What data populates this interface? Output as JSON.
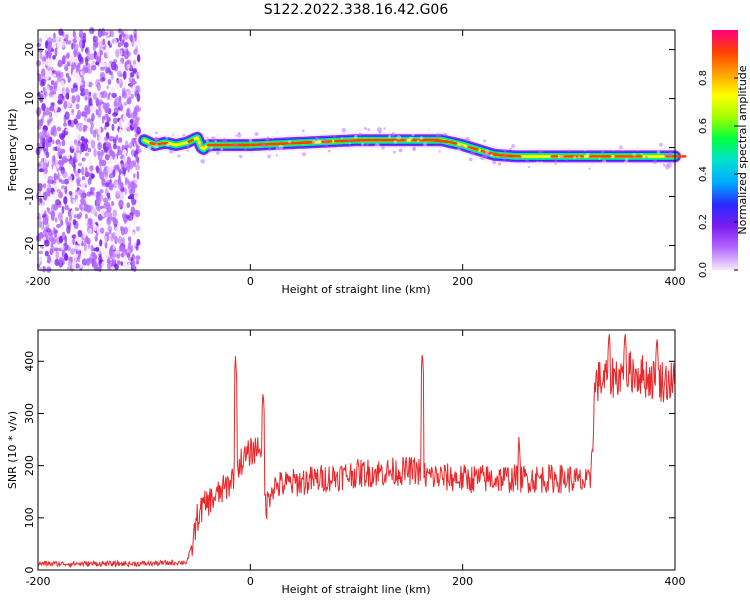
{
  "title": "S122.2022.338.16.42.G06",
  "colors": {
    "snr_line": "#e8282a",
    "colormap": [
      "#f6e8fb",
      "#b56bff",
      "#7a1cf0",
      "#2a2aff",
      "#00aaff",
      "#00e0d0",
      "#00ff40",
      "#a0ff00",
      "#ffff00",
      "#ffa000",
      "#ff4000",
      "#ff0080"
    ]
  },
  "chart_data": [
    {
      "type": "heatmap",
      "xlabel": "Height of straight line (km)",
      "ylabel": "Frequency (Hz)",
      "xlim": [
        -200,
        400
      ],
      "ylim": [
        -25,
        24
      ],
      "xticks": [
        -200,
        0,
        200,
        400
      ],
      "yticks": [
        -20,
        -10,
        0,
        10,
        20
      ],
      "noise_region_x": [
        -200,
        -100
      ],
      "signal_track": {
        "x": [
          -100,
          -90,
          -80,
          -70,
          -60,
          -50,
          -45,
          -40,
          -20,
          0,
          50,
          100,
          150,
          180,
          200,
          215,
          230,
          250,
          300,
          350,
          400
        ],
        "freq": [
          1.5,
          0.5,
          1.0,
          0.5,
          1.0,
          2.0,
          -0.5,
          0.5,
          0.5,
          0.5,
          1.0,
          1.5,
          1.5,
          1.5,
          0.5,
          -0.5,
          -1.5,
          -1.8,
          -1.8,
          -1.8,
          -1.8
        ]
      },
      "colorbar": {
        "label": "Normalized spectral amplitude",
        "ticks": [
          0.0,
          0.2,
          0.4,
          0.6,
          0.8
        ],
        "range": [
          0,
          1
        ]
      }
    },
    {
      "type": "line",
      "xlabel": "Height of straight line (km)",
      "ylabel": "SNR (10 * v/v)",
      "xlim": [
        -200,
        400
      ],
      "ylim": [
        0,
        460
      ],
      "xticks": [
        -200,
        0,
        200,
        400
      ],
      "yticks": [
        0,
        100,
        200,
        300,
        400
      ],
      "series_baseline": {
        "x": [
          -200,
          -100,
          -60,
          -55,
          -50,
          -45,
          -40,
          -30,
          -20,
          -10,
          0,
          10,
          15,
          20,
          50,
          100,
          150,
          160,
          165,
          200,
          250,
          300,
          320,
          325,
          340,
          360,
          380,
          400
        ],
        "y": [
          12,
          12,
          15,
          45,
          100,
          120,
          130,
          145,
          165,
          205,
          225,
          240,
          120,
          160,
          170,
          185,
          190,
          190,
          180,
          175,
          175,
          175,
          165,
          360,
          370,
          380,
          365,
          360
        ]
      },
      "spikes": [
        {
          "x": -14,
          "y": 410
        },
        {
          "x": 12,
          "y": 345
        },
        {
          "x": 162,
          "y": 420
        },
        {
          "x": 253,
          "y": 255
        },
        {
          "x": 338,
          "y": 460
        },
        {
          "x": 353,
          "y": 460
        },
        {
          "x": 383,
          "y": 450
        }
      ]
    }
  ]
}
